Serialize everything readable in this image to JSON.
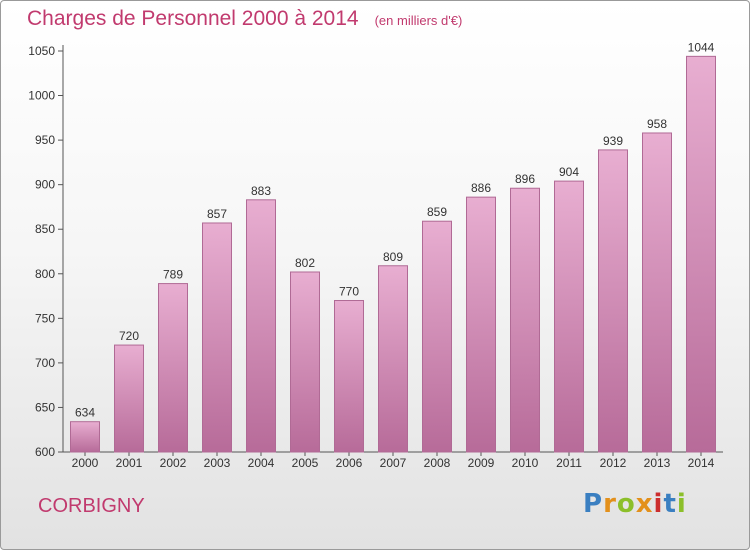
{
  "title": "Charges de Personnel 2000 à 2014",
  "subtitle": "(en milliers d'€)",
  "footer": {
    "place": "CORBIGNY",
    "logo_letters": [
      "P",
      "r",
      "o",
      "x",
      "i",
      "t",
      "i"
    ],
    "logo_colors": [
      "#3a7fc1",
      "#e3901b",
      "#8cbf2a",
      "#e3901b",
      "#cc2e2e",
      "#3a7fc1",
      "#8cbf2a"
    ]
  },
  "colors": {
    "bar_top": "#e8aed1",
    "bar_bottom": "#b76b99",
    "bar_stroke": "#b06a95",
    "text_accent": "#c13a6e"
  },
  "chart_data": {
    "type": "bar",
    "categories": [
      "2000",
      "2001",
      "2002",
      "2003",
      "2004",
      "2005",
      "2006",
      "2007",
      "2008",
      "2009",
      "2010",
      "2011",
      "2012",
      "2013",
      "2014"
    ],
    "values": [
      634,
      720,
      789,
      857,
      883,
      802,
      770,
      809,
      859,
      886,
      896,
      904,
      939,
      958,
      1044
    ],
    "ylim": [
      600,
      1050
    ],
    "yticks": [
      600,
      650,
      700,
      750,
      800,
      850,
      900,
      950,
      1000,
      1050
    ],
    "grid": false,
    "data_labels": true
  }
}
